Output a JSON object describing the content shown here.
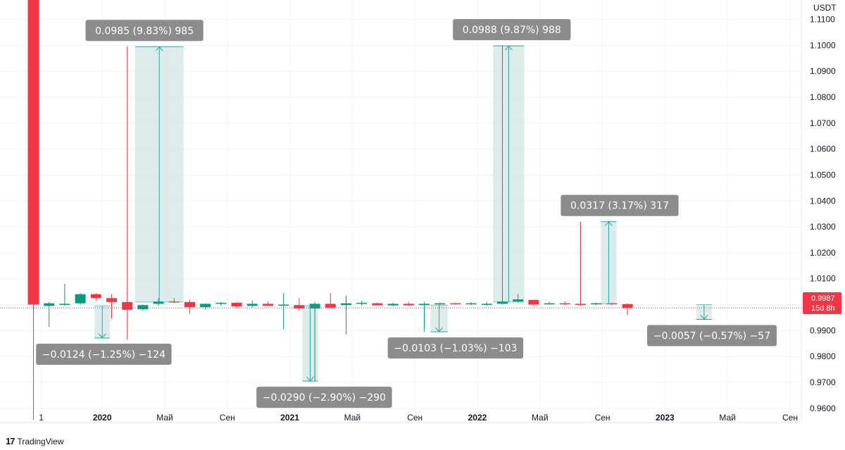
{
  "chart_data": {
    "type": "candlestick",
    "currency": "USDT",
    "y_ticks": [
      "1.1100",
      "1.1000",
      "1.0900",
      "1.0800",
      "1.0700",
      "1.0600",
      "1.0500",
      "1.0400",
      "1.0300",
      "1.0200",
      "1.0100",
      "1.0000",
      "0.9900",
      "0.9800",
      "0.9700",
      "0.9600"
    ],
    "y_tick_values": [
      1.11,
      1.1,
      1.09,
      1.08,
      1.07,
      1.06,
      1.05,
      1.04,
      1.03,
      1.02,
      1.01,
      1.0,
      0.99,
      0.98,
      0.97,
      0.96
    ],
    "ylim": [
      0.9545,
      1.1175
    ],
    "x_ticks": [
      {
        "label": "1",
        "index": 0.5,
        "bold": false
      },
      {
        "label": "2020",
        "index": 4.4,
        "bold": true
      },
      {
        "label": "Май",
        "index": 8.4,
        "bold": false
      },
      {
        "label": "Сен",
        "index": 12.4,
        "bold": false
      },
      {
        "label": "2021",
        "index": 16.4,
        "bold": true
      },
      {
        "label": "Май",
        "index": 20.4,
        "bold": false
      },
      {
        "label": "Сен",
        "index": 24.4,
        "bold": false
      },
      {
        "label": "2022",
        "index": 28.4,
        "bold": true
      },
      {
        "label": "Май",
        "index": 32.4,
        "bold": false
      },
      {
        "label": "Сен",
        "index": 36.4,
        "bold": false
      },
      {
        "label": "2023",
        "index": 40.4,
        "bold": true
      },
      {
        "label": "Май",
        "index": 44.4,
        "bold": false
      },
      {
        "label": "Сен",
        "index": 48.4,
        "bold": false
      }
    ],
    "candles": [
      {
        "o": 1.1175,
        "h": 1.1175,
        "l": 0.9555,
        "c": 1.0
      },
      {
        "o": 0.9995,
        "h": 1.001,
        "l": 0.9915,
        "c": 1.0005
      },
      {
        "o": 1.0,
        "h": 1.008,
        "l": 0.9995,
        "c": 1.0003
      },
      {
        "o": 1.0005,
        "h": 1.0045,
        "l": 1.0,
        "c": 1.004
      },
      {
        "o": 1.004,
        "h": 1.0045,
        "l": 1.0015,
        "c": 1.0025
      },
      {
        "o": 1.0025,
        "h": 1.004,
        "l": 0.9945,
        "c": 1.001
      },
      {
        "o": 1.001,
        "h": 1.0995,
        "l": 0.9865,
        "c": 0.998
      },
      {
        "o": 0.9982,
        "h": 1.0,
        "l": 0.9975,
        "c": 0.9998
      },
      {
        "o": 1.0003,
        "h": 1.0025,
        "l": 0.9995,
        "c": 1.0012
      },
      {
        "o": 1.0012,
        "h": 1.0025,
        "l": 1.0005,
        "c": 1.001
      },
      {
        "o": 1.001,
        "h": 1.0018,
        "l": 0.9965,
        "c": 0.999
      },
      {
        "o": 0.999,
        "h": 1.0005,
        "l": 0.998,
        "c": 1.0003
      },
      {
        "o": 1.0003,
        "h": 1.001,
        "l": 0.9995,
        "c": 1.0007
      },
      {
        "o": 1.0007,
        "h": 1.001,
        "l": 0.9985,
        "c": 0.9993
      },
      {
        "o": 0.9995,
        "h": 1.0015,
        "l": 0.999,
        "c": 1.0003
      },
      {
        "o": 1.0003,
        "h": 1.0012,
        "l": 0.9995,
        "c": 0.9995
      },
      {
        "o": 0.9998,
        "h": 1.0045,
        "l": 0.9905,
        "c": 1.0
      },
      {
        "o": 0.9998,
        "h": 1.0025,
        "l": 0.9975,
        "c": 0.9985
      },
      {
        "o": 0.9985,
        "h": 1.001,
        "l": 0.9705,
        "c": 1.0003
      },
      {
        "o": 1.0003,
        "h": 1.0045,
        "l": 0.9995,
        "c": 0.9988
      },
      {
        "o": 0.9998,
        "h": 1.0035,
        "l": 0.9885,
        "c": 1.0005
      },
      {
        "o": 1.0003,
        "h": 1.0015,
        "l": 0.9995,
        "c": 1.0007
      },
      {
        "o": 1.0005,
        "h": 1.0008,
        "l": 0.9998,
        "c": 0.9997
      },
      {
        "o": 0.9997,
        "h": 1.0008,
        "l": 0.9993,
        "c": 1.0003
      },
      {
        "o": 1.0003,
        "h": 1.001,
        "l": 0.9995,
        "c": 0.9997
      },
      {
        "o": 0.9998,
        "h": 1.001,
        "l": 0.9895,
        "c": 1.0003
      },
      {
        "o": 1.0003,
        "h": 1.0008,
        "l": 0.9998,
        "c": 1.0005
      },
      {
        "o": 1.0005,
        "h": 1.0007,
        "l": 1.0,
        "c": 1.0002
      },
      {
        "o": 1.0002,
        "h": 1.001,
        "l": 0.9998,
        "c": 1.0005
      },
      {
        "o": 1.0003,
        "h": 1.001,
        "l": 0.9995,
        "c": 1.0003
      },
      {
        "o": 1.0003,
        "h": 1.1,
        "l": 1.0,
        "c": 1.0012
      },
      {
        "o": 1.0012,
        "h": 1.004,
        "l": 1.0008,
        "c": 1.002
      },
      {
        "o": 1.0018,
        "h": 1.002,
        "l": 0.9998,
        "c": 1.0
      },
      {
        "o": 1.0003,
        "h": 1.001,
        "l": 1.0,
        "c": 1.0005
      },
      {
        "o": 1.0005,
        "h": 1.0012,
        "l": 0.9998,
        "c": 1.0003
      },
      {
        "o": 1.0003,
        "h": 1.032,
        "l": 0.9995,
        "c": 1.0002
      },
      {
        "o": 1.0003,
        "h": 1.0008,
        "l": 0.9998,
        "c": 1.0005
      },
      {
        "o": 1.0005,
        "h": 1.0008,
        "l": 0.9998,
        "c": 1.0002
      },
      {
        "o": 1.0002,
        "h": 1.0005,
        "l": 0.996,
        "c": 0.9987
      }
    ],
    "candle_x0": 47.5,
    "candle_step": 22.2,
    "measures": [
      {
        "x1": 6.5,
        "x2": 9.6,
        "from": 1.001,
        "to": 1.0995,
        "label": "0.0985 (9.83%) 985",
        "dir": "up",
        "label_x": 7.1,
        "label_pos": "above"
      },
      {
        "x1": 3.9,
        "x2": 4.9,
        "from": 0.9995,
        "to": 0.9871,
        "label": "−0.0124 (−1.25%) −124",
        "dir": "down",
        "label_x": 4.5,
        "label_pos": "below"
      },
      {
        "x1": 17.2,
        "x2": 18.2,
        "from": 0.9995,
        "to": 0.9705,
        "label": "−0.0290 (−2.90%) −290",
        "dir": "down",
        "label_x": 18.6,
        "label_pos": "below"
      },
      {
        "x1": 29.4,
        "x2": 31.4,
        "from": 1.001,
        "to": 1.0998,
        "label": "0.0988 (9.87%) 988",
        "dir": "up",
        "label_x": 30.6,
        "label_pos": "above"
      },
      {
        "x1": 25.4,
        "x2": 26.5,
        "from": 0.9998,
        "to": 0.9895,
        "label": "−0.0103 (−1.03%) −103",
        "dir": "down",
        "label_x": 27.0,
        "label_pos": "below"
      },
      {
        "x1": 36.3,
        "x2": 37.3,
        "from": 1.0003,
        "to": 1.032,
        "label": "0.0317 (3.17%) 317",
        "dir": "up",
        "label_x": 37.5,
        "label_pos": "above"
      },
      {
        "x1": 42.4,
        "x2": 43.4,
        "from": 1.0,
        "to": 0.9943,
        "label": "−0.0057 (−0.57%) −57",
        "dir": "down",
        "label_x": 43.4,
        "label_pos": "below"
      }
    ],
    "last_price": {
      "value": 0.9987,
      "label": "0.9987",
      "sublabel": "15d 8h"
    },
    "colors": {
      "up": "#089981",
      "down": "#f23645",
      "measure_fill": "#d7e8e7",
      "measure_line": "#2aa8a5",
      "label_bg": "#8c8c8c",
      "grid": "#f0f3fa"
    }
  },
  "footer": {
    "brand": "TradingView",
    "logo": "17"
  }
}
